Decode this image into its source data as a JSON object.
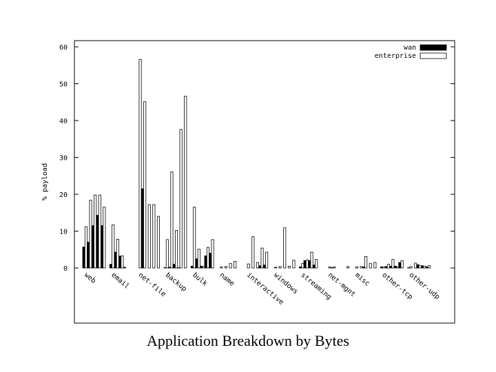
{
  "caption": "Application Breakdown by Bytes",
  "chart_data": {
    "type": "bar",
    "title": "Application Breakdown by Bytes",
    "xlabel": "",
    "ylabel": "% payload",
    "ylim": [
      -15,
      60
    ],
    "yticks": [
      0,
      10,
      20,
      30,
      40,
      50,
      60
    ],
    "grid": false,
    "legend_position": "top-right",
    "categories": [
      "web",
      "email",
      "net-file",
      "backup",
      "bulk",
      "name",
      "interactive",
      "windows",
      "streaming",
      "net-mgnt",
      "misc",
      "other-tcp",
      "other-udp"
    ],
    "series": [
      {
        "name": "wan",
        "color": "#000000",
        "values": [
          [
            5.7,
            7.0,
            11.5,
            14.3,
            11.5
          ],
          [
            1.0,
            4.3,
            3.2,
            0.2,
            0.0
          ],
          [
            0.0,
            21.5,
            0.0,
            0.0,
            0.0
          ],
          [
            0.1,
            0.2,
            1.0,
            0.1,
            0.0
          ],
          [
            0.5,
            2.5,
            0.5,
            3.3,
            4.0
          ],
          [
            0.0,
            0.0,
            0.0,
            0.0,
            0.0
          ],
          [
            0.0,
            0.0,
            0.0,
            0.6,
            0.8
          ],
          [
            0.0,
            0.0,
            0.0,
            0.0,
            0.0
          ],
          [
            0.3,
            2.0,
            2.0,
            0.8,
            0.0
          ],
          [
            0.0,
            0.1,
            0.0,
            0.0,
            0.0
          ],
          [
            0.0,
            0.0,
            0.3,
            0.0,
            0.0
          ],
          [
            0.3,
            0.4,
            0.5,
            0.5,
            1.5
          ],
          [
            0.1,
            0.0,
            0.9,
            0.6,
            0.3
          ]
        ]
      },
      {
        "name": "enterprise",
        "color": "#ffffff",
        "values": [
          [
            11.2,
            18.4,
            19.8,
            19.8,
            16.5
          ],
          [
            11.7,
            7.8,
            3.3,
            0.0,
            0.0
          ],
          [
            56.6,
            45.1,
            17.2,
            17.2,
            14.0
          ],
          [
            7.7,
            26.1,
            10.2,
            37.6,
            46.6
          ],
          [
            16.5,
            5.1,
            0.4,
            5.6,
            7.7
          ],
          [
            0.3,
            0.4,
            1.2,
            1.8,
            0.0
          ],
          [
            1.1,
            8.5,
            1.5,
            5.4,
            4.3
          ],
          [
            0.2,
            0.4,
            10.9,
            0.5,
            2.1
          ],
          [
            1.2,
            2.2,
            4.3,
            2.3,
            0.0
          ],
          [
            0.3,
            0.3,
            0.0,
            0.0,
            0.4
          ],
          [
            0.3,
            0.4,
            3.1,
            1.2,
            1.5
          ],
          [
            0.3,
            1.0,
            2.3,
            0.3,
            2.0
          ],
          [
            0.4,
            1.3,
            0.7,
            0.5,
            0.6
          ]
        ]
      }
    ]
  }
}
